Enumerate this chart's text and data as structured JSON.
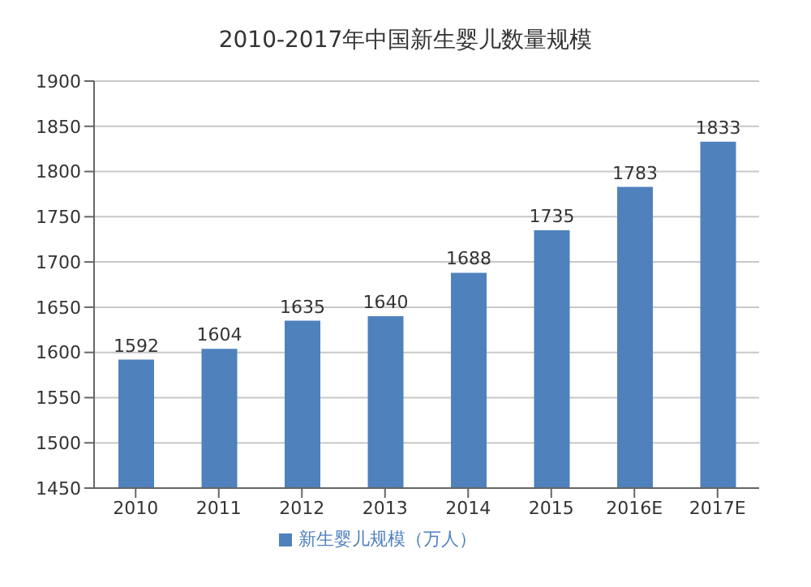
{
  "chart_data": {
    "type": "bar",
    "title": "2010-2017年中国新生婴儿数量规模",
    "categories": [
      "2010",
      "2011",
      "2012",
      "2013",
      "2014",
      "2015",
      "2016E",
      "2017E"
    ],
    "series": [
      {
        "name": "新生婴儿规模（万人）",
        "color": "#4f81bd",
        "values": [
          1592,
          1604,
          1635,
          1640,
          1688,
          1735,
          1783,
          1833
        ]
      }
    ],
    "ylim": [
      1450,
      1900
    ],
    "yticks": [
      1450,
      1500,
      1550,
      1600,
      1650,
      1700,
      1750,
      1800,
      1850,
      1900
    ],
    "grid": "y",
    "legend": "bottom",
    "data_labels": true
  }
}
